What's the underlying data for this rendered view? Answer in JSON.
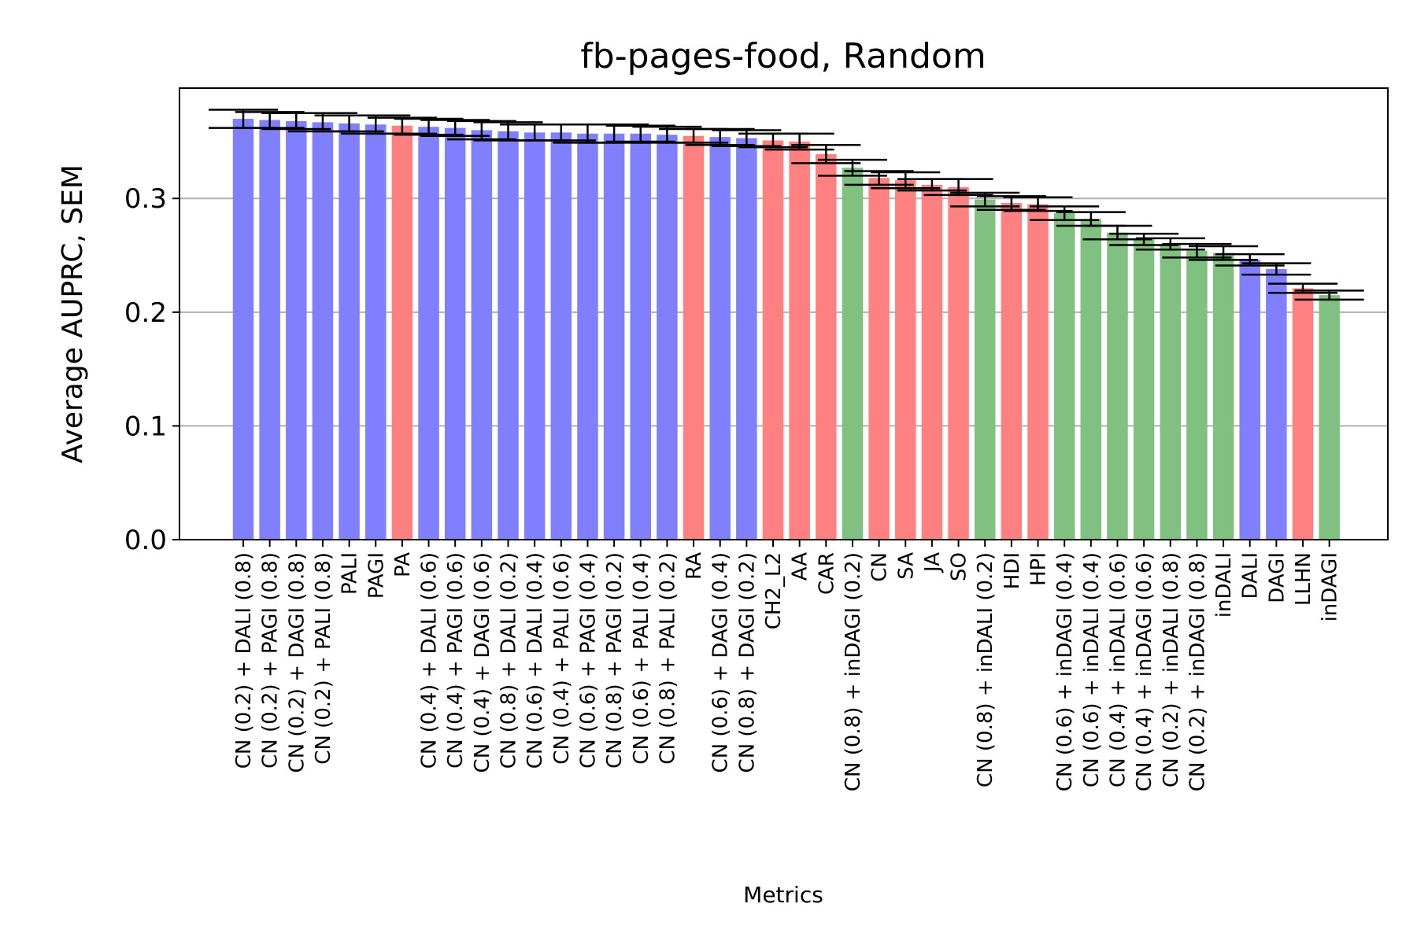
{
  "chart_data": {
    "type": "bar",
    "title": "fb-pages-food, Random",
    "xlabel": "Metrics",
    "ylabel": "Average AUPRC, SEM",
    "ylim": [
      0,
      0.397
    ],
    "yticks": [
      "0.0",
      "0.1",
      "0.2",
      "0.3"
    ],
    "grid": "horizontal",
    "colors": {
      "blue": "#8080ff",
      "red": "#ff8080",
      "green": "#80c080",
      "error": "#000000",
      "gridline": "#b0b0b0"
    },
    "categories": [
      "CN (0.2) + DALI (0.8)",
      "CN (0.2) + PAGI (0.8)",
      "CN (0.2) + DAGI (0.8)",
      "CN (0.2) + PALI (0.8)",
      "PALI",
      "PAGI",
      "PA",
      "CN (0.4) + DALI (0.6)",
      "CN (0.4) + PAGI (0.6)",
      "CN (0.4) + DAGI (0.6)",
      "CN (0.8) + DALI (0.2)",
      "CN (0.6) + DALI (0.4)",
      "CN (0.4) + PALI (0.6)",
      "CN (0.6) + PAGI (0.4)",
      "CN (0.8) + PAGI (0.2)",
      "CN (0.6) + PALI (0.4)",
      "CN (0.8) + PALI (0.2)",
      "RA",
      "CN (0.6) + DAGI (0.4)",
      "CN (0.8) + DAGI (0.2)",
      "CH2_L2",
      "AA",
      "CAR",
      "CN (0.8) + inDAGI (0.2)",
      "CN",
      "SA",
      "JA",
      "SO",
      "CN (0.8) + inDALI (0.2)",
      "HDI",
      "HPI",
      "CN (0.6) + inDAGI (0.4)",
      "CN (0.6) + inDALI (0.4)",
      "CN (0.4) + inDALI (0.6)",
      "CN (0.4) + inDAGI (0.6)",
      "CN (0.2) + inDALI (0.8)",
      "CN (0.2) + inDAGI (0.8)",
      "inDALI",
      "DALI",
      "DAGI",
      "LLHN",
      "inDAGI"
    ],
    "bar_colors": [
      "blue",
      "blue",
      "blue",
      "blue",
      "blue",
      "blue",
      "red",
      "blue",
      "blue",
      "blue",
      "blue",
      "blue",
      "blue",
      "blue",
      "blue",
      "blue",
      "blue",
      "red",
      "blue",
      "blue",
      "red",
      "red",
      "red",
      "green",
      "red",
      "red",
      "red",
      "red",
      "green",
      "red",
      "red",
      "green",
      "green",
      "green",
      "green",
      "green",
      "green",
      "green",
      "blue",
      "blue",
      "red",
      "green"
    ],
    "values": [
      0.37,
      0.369,
      0.368,
      0.367,
      0.366,
      0.365,
      0.364,
      0.363,
      0.362,
      0.36,
      0.359,
      0.358,
      0.358,
      0.357,
      0.357,
      0.357,
      0.356,
      0.355,
      0.354,
      0.353,
      0.351,
      0.35,
      0.339,
      0.327,
      0.318,
      0.316,
      0.312,
      0.31,
      0.299,
      0.296,
      0.295,
      0.287,
      0.282,
      0.27,
      0.264,
      0.26,
      0.254,
      0.252,
      0.246,
      0.238,
      0.221,
      0.215
    ],
    "errors": [
      0.008,
      0.007,
      0.007,
      0.008,
      0.007,
      0.008,
      0.007,
      0.007,
      0.007,
      0.008,
      0.008,
      0.007,
      0.007,
      0.008,
      0.008,
      0.007,
      0.007,
      0.006,
      0.007,
      0.007,
      0.006,
      0.007,
      0.008,
      0.007,
      0.006,
      0.007,
      0.005,
      0.007,
      0.006,
      0.006,
      0.006,
      0.006,
      0.006,
      0.006,
      0.005,
      0.005,
      0.006,
      0.006,
      0.005,
      0.005,
      0.004,
      0.004
    ]
  }
}
